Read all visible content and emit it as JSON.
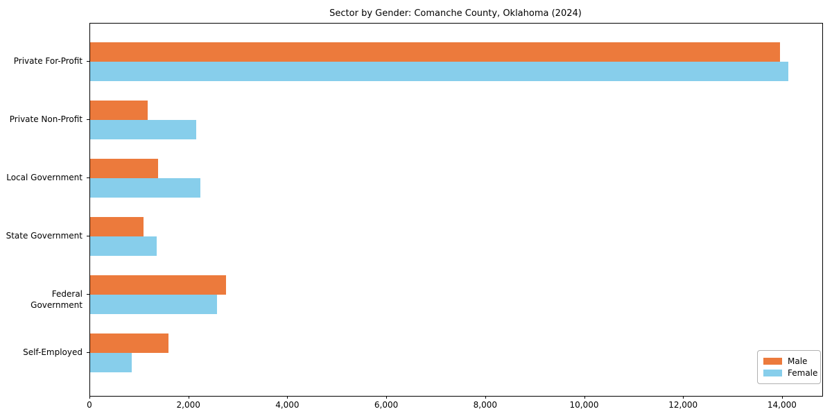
{
  "title": "Sector by Gender: Comanche County, Oklahoma (2024)",
  "chart_data": {
    "type": "bar",
    "orientation": "horizontal",
    "title": "Sector by Gender: Comanche County, Oklahoma (2024)",
    "xlabel": "",
    "ylabel": "",
    "categories": [
      "Private For-Profit",
      "Private Non-Profit",
      "Local Government",
      "State Government",
      "Federal Government",
      "Self-Employed"
    ],
    "series": [
      {
        "name": "Male",
        "color": "#ec7a3c",
        "values": [
          13940,
          1170,
          1370,
          1080,
          2750,
          1590
        ]
      },
      {
        "name": "Female",
        "color": "#87ceeb",
        "values": [
          14110,
          2150,
          2230,
          1340,
          2570,
          840
        ]
      }
    ],
    "xlim": [
      0,
      14800
    ],
    "xticks": [
      0,
      2000,
      4000,
      6000,
      8000,
      10000,
      12000,
      14000
    ],
    "xtick_labels": [
      "0",
      "2,000",
      "4,000",
      "6,000",
      "8,000",
      "10,000",
      "12,000",
      "14,000"
    ],
    "grid": false,
    "legend_position": "lower right"
  },
  "legend": {
    "male_label": "Male",
    "female_label": "Female"
  }
}
